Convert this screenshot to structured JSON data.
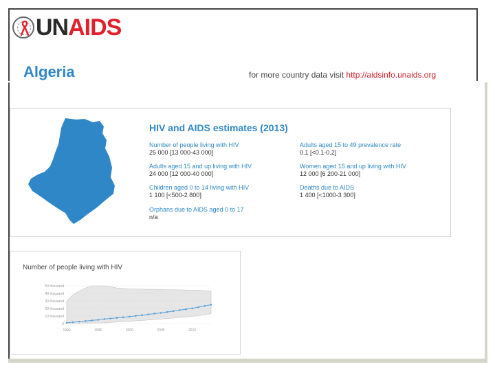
{
  "header": {
    "logo_un": "UN",
    "logo_aids": "AIDS",
    "country": "Algeria",
    "visit_text": "for more country data visit ",
    "visit_link": "http://aidsinfo.unaids.org"
  },
  "estimates": {
    "title": "HIV and AIDS estimates (2013)",
    "stats": [
      {
        "label": "Number of people living with HIV",
        "value": "25 000 [13 000-43 000]"
      },
      {
        "label": "Adults aged 15 and up living with HIV",
        "value": "24 000 [12 000-40 000]"
      },
      {
        "label": "Children aged 0 to 14 living with HIV",
        "value": "1 100 [<500-2 800]"
      },
      {
        "label": "Orphans due to AIDS aged 0 to 17",
        "value": "n/a"
      },
      {
        "label": "Adults aged 15 to 49 prevalence rate",
        "value": "0.1 [<0.1-0.2]"
      },
      {
        "label": "Women aged 15 and up living with HIV",
        "value": "12 000 [6 200-21 000]"
      },
      {
        "label": "Deaths due to AIDS",
        "value": "1 400 [<1000-3 300]"
      }
    ]
  },
  "colors": {
    "accent": "#2f87c8",
    "brand_red": "#e0202a",
    "band_fill": "#e6e6e6",
    "line": "#5aa0d8"
  },
  "chart_data": {
    "type": "area",
    "title": "Number of people living with HIV",
    "xlabel": "",
    "ylabel": "",
    "ylim": [
      0,
      50000
    ],
    "xlim": [
      1990,
      2013
    ],
    "yticks": [
      0,
      10000,
      20000,
      30000,
      40000,
      50000
    ],
    "ytick_labels": [
      "0",
      "10 thousand",
      "20 thousand",
      "30 thousand",
      "40 thousand",
      "50 thousand"
    ],
    "xticks": [
      1990,
      1995,
      2000,
      2005,
      2010
    ],
    "xtick_labels": [
      "1990",
      "1995",
      "2000",
      "2005",
      "2010"
    ],
    "x": [
      1990,
      1991,
      1992,
      1993,
      1994,
      1995,
      1996,
      1997,
      1998,
      1999,
      2000,
      2001,
      2002,
      2003,
      2004,
      2005,
      2006,
      2007,
      2008,
      2009,
      2010,
      2011,
      2012,
      2013
    ],
    "series": [
      {
        "name": "estimate",
        "values": [
          1000,
          1800,
          2600,
          3400,
          4200,
          5000,
          6000,
          6800,
          7600,
          8400,
          9200,
          10200,
          11200,
          12200,
          13200,
          14200,
          15400,
          16600,
          17800,
          19000,
          20200,
          21800,
          23400,
          25000
        ]
      },
      {
        "name": "upper",
        "values": [
          30000,
          38000,
          43000,
          47000,
          50000,
          50000,
          50000,
          49000,
          47000,
          46500,
          46000,
          45800,
          45600,
          45500,
          45300,
          45100,
          45000,
          44800,
          44600,
          44400,
          44200,
          44000,
          43500,
          43000
        ]
      },
      {
        "name": "lower",
        "values": [
          500,
          500,
          600,
          700,
          800,
          900,
          1000,
          1500,
          2000,
          2500,
          3000,
          3600,
          4200,
          4800,
          5400,
          6000,
          6700,
          7400,
          8100,
          8800,
          9600,
          10600,
          11800,
          13000
        ]
      }
    ]
  }
}
